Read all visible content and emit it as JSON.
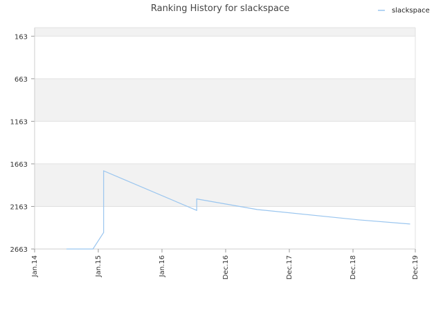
{
  "chart_data": {
    "type": "line",
    "title": "Ranking History for slackspace",
    "xlabel": "",
    "ylabel": "",
    "y_inverted": true,
    "ylim": [
      2663,
      63
    ],
    "y_ticks": [
      163,
      663,
      1163,
      1663,
      2163,
      2663
    ],
    "x_ticks": [
      "Jan.14",
      "Jan.15",
      "Jan.16",
      "Dec.16",
      "Dec.17",
      "Dec.18",
      "Dec.19"
    ],
    "legend": {
      "position": "top-right",
      "entries": [
        "slackspace"
      ]
    },
    "grid": true,
    "colors": {
      "line": "#99c5ef",
      "band": "#f2f2f2",
      "grid": "#e0e0e0",
      "axis": "#cccccc"
    },
    "series": [
      {
        "name": "slackspace",
        "points": [
          {
            "x": "2014-07",
            "y": 2663
          },
          {
            "x": "2014-12",
            "y": 2663
          },
          {
            "x": "2015-02",
            "y": 2470
          },
          {
            "x": "2015-02",
            "y": 1830
          },
          {
            "x": "2015-02",
            "y": 1745
          },
          {
            "x": "2016-07",
            "y": 2210
          },
          {
            "x": "2016-07",
            "y": 2075
          },
          {
            "x": "2017-06",
            "y": 2200
          },
          {
            "x": "2019-01",
            "y": 2320
          },
          {
            "x": "2019-11",
            "y": 2370
          }
        ]
      }
    ]
  }
}
